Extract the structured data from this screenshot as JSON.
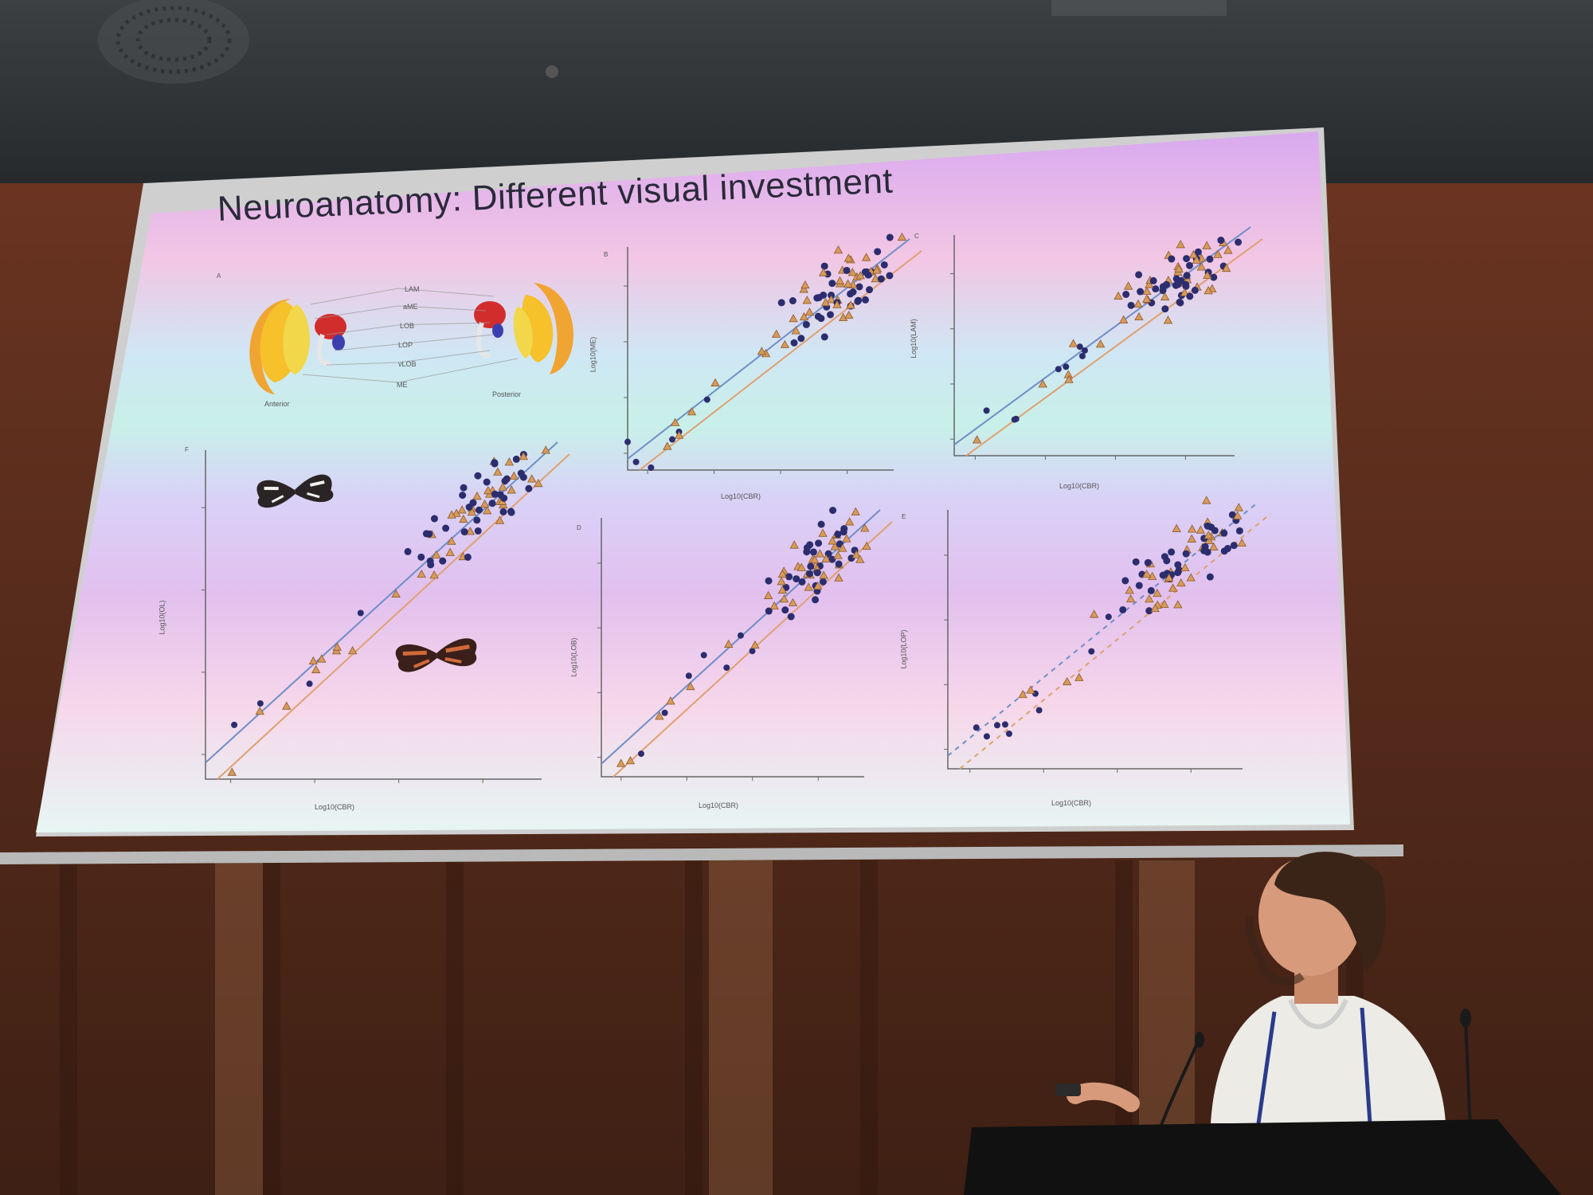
{
  "slide": {
    "title": "Neuroanatomy: Different visual investment",
    "panel_letters": [
      "A",
      "B",
      "C",
      "F",
      "D",
      "E"
    ]
  },
  "panel_a": {
    "region_labels": [
      "LAM",
      "aME",
      "LOB",
      "LOP",
      "vLOB",
      "ME"
    ],
    "view_left": "Anterior",
    "view_right": "Posterior"
  },
  "axis_text": {
    "x_label": "Log10(CBR)",
    "y_labels": [
      "Log10(ME)",
      "Log10(LAM)",
      "Log10(OL)",
      "Log10(LOB)",
      "Log10(LOP)"
    ]
  },
  "colors": {
    "series_dark": "#2b2d6e",
    "series_orange": "#d89a5a",
    "line_blue": "#6e8ec8",
    "line_orange": "#e0a070"
  }
}
